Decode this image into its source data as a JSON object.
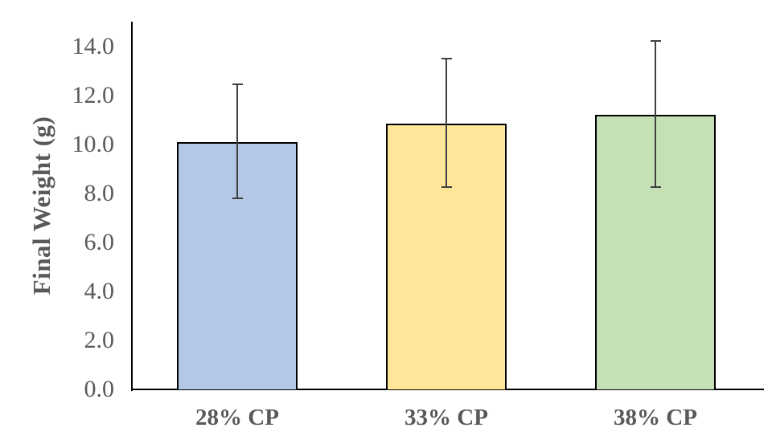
{
  "chart_data": {
    "type": "bar",
    "title": "",
    "xlabel": "",
    "ylabel": "Final Weight (g)",
    "categories": [
      "28% CP",
      "33% CP",
      "38% CP"
    ],
    "values": [
      10.1,
      10.85,
      11.2
    ],
    "error_upper": [
      12.45,
      13.5,
      14.2
    ],
    "error_lower": [
      7.8,
      8.25,
      8.25
    ],
    "ytick_labels": [
      "0.0",
      "2.0",
      "4.0",
      "6.0",
      "8.0",
      "10.0",
      "12.0",
      "14.0"
    ],
    "ytick_step": 2,
    "ylim": [
      0,
      15
    ],
    "grid": false,
    "legend": false,
    "colors": {
      "bar_fills": [
        "#B4C7E7",
        "#FFE699",
        "#C5E0B4"
      ],
      "bar_border": "#000000",
      "error_bar": "#404040",
      "axis_line": "#000000",
      "text": "#595959",
      "background": "#FFFFFF"
    }
  }
}
